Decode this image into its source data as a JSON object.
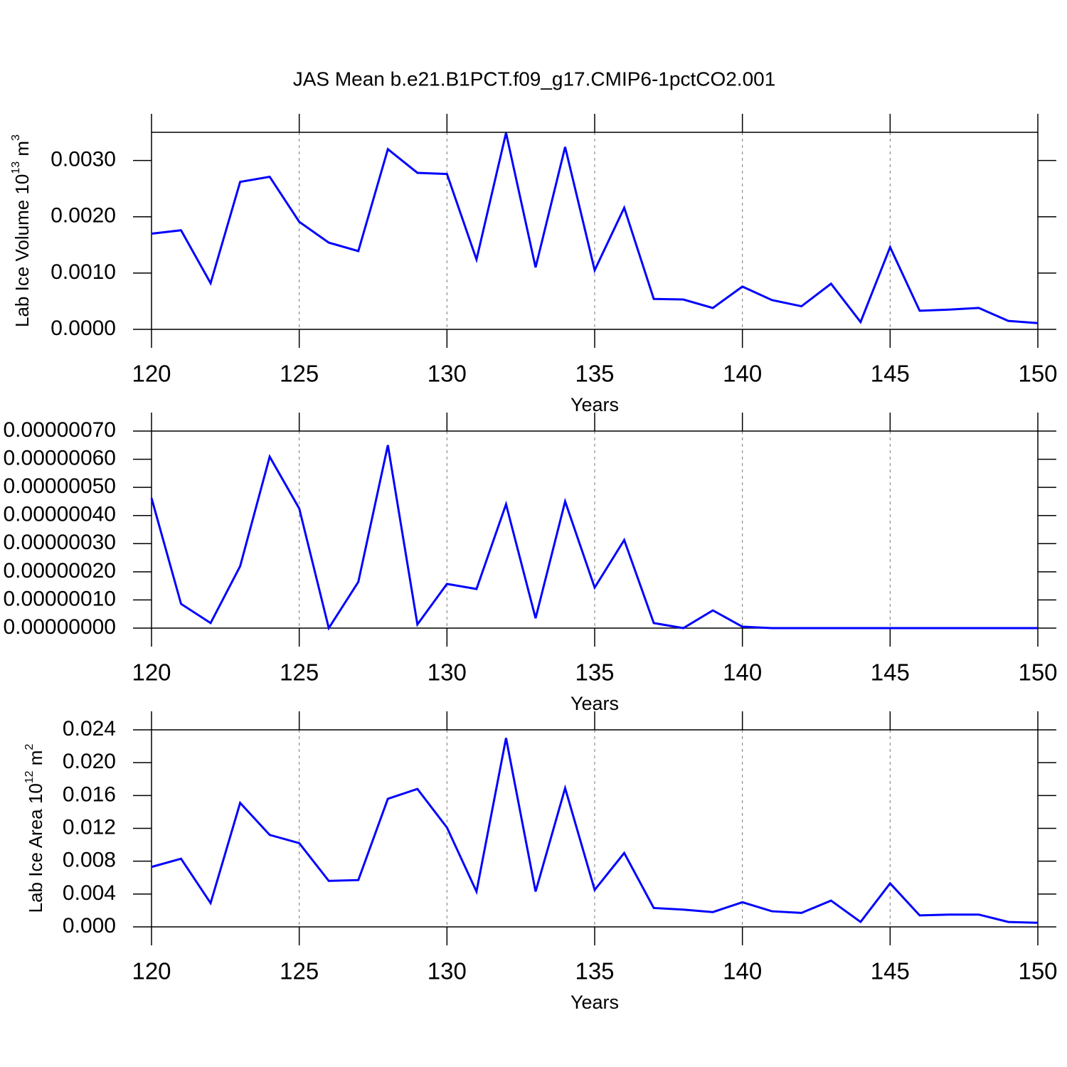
{
  "chart_data": [
    {
      "type": "line",
      "title": "JAS Mean b.e21.B1PCT.f09_g17.CMIP6-1pctCO2.001",
      "xlabel": "Years",
      "ylabel": [
        "Lab Ice Volume 10",
        "13",
        " m",
        "3"
      ],
      "x": [
        120,
        121,
        122,
        123,
        124,
        125,
        126,
        127,
        128,
        129,
        130,
        131,
        132,
        133,
        134,
        135,
        136,
        137,
        138,
        139,
        140,
        141,
        142,
        143,
        144,
        145,
        146,
        147,
        148,
        149,
        150
      ],
      "series": [
        {
          "color": "#0000ff",
          "values": [
            0.0017,
            0.00176,
            0.00082,
            0.00262,
            0.00271,
            0.00191,
            0.00154,
            0.00139,
            0.0032,
            0.00278,
            0.00276,
            0.00124,
            0.00349,
            0.0011,
            0.00324,
            0.00105,
            0.00216,
            0.00054,
            0.00053,
            0.00038,
            0.00076,
            0.00052,
            0.00041,
            0.00081,
            0.00013,
            0.00146,
            0.00033,
            0.00035,
            0.00038,
            0.00015,
            0.00011
          ]
        }
      ],
      "xlim": [
        120,
        150
      ],
      "xticks": [
        120,
        125,
        130,
        135,
        140,
        145,
        150
      ],
      "ylim": [
        0,
        0.0035
      ],
      "yticks": [
        {
          "value": 0,
          "label": "0.0000"
        },
        {
          "value": 0.001,
          "label": "0.0010"
        },
        {
          "value": 0.002,
          "label": "0.0020"
        },
        {
          "value": 0.003,
          "label": "0.0030"
        }
      ],
      "grid": true
    },
    {
      "type": "line",
      "xlabel": "Years",
      "x": [
        120,
        121,
        122,
        123,
        124,
        125,
        126,
        127,
        128,
        129,
        130,
        131,
        132,
        133,
        134,
        135,
        136,
        137,
        138,
        139,
        140,
        141,
        142,
        143,
        144,
        145,
        146,
        147,
        148,
        149,
        150
      ],
      "series": [
        {
          "color": "#0000ff",
          "values": [
            4.62e-07,
            8.6e-08,
            1.8e-08,
            2.2e-07,
            6.09e-07,
            4.25e-07,
            0,
            1.64e-07,
            6.5e-07,
            1.3e-08,
            1.57e-07,
            1.39e-07,
            4.4e-07,
            3.5e-08,
            4.5e-07,
            1.44e-07,
            3.13e-07,
            1.8e-08,
            0,
            6.3e-08,
            5e-09,
            0,
            0,
            0,
            0,
            0,
            0,
            0,
            0,
            0,
            0
          ]
        }
      ],
      "xlim": [
        120,
        150
      ],
      "xticks": [
        120,
        125,
        130,
        135,
        140,
        145,
        150
      ],
      "ylim": [
        0,
        7e-07
      ],
      "yticks": [
        {
          "value": 0,
          "label": "0.00000000"
        },
        {
          "value": 1e-07,
          "label": "0.00000010"
        },
        {
          "value": 2e-07,
          "label": "0.00000020"
        },
        {
          "value": 3e-07,
          "label": "0.00000030"
        },
        {
          "value": 4e-07,
          "label": "0.00000040"
        },
        {
          "value": 5e-07,
          "label": "0.00000050"
        },
        {
          "value": 6e-07,
          "label": "0.00000060"
        },
        {
          "value": 7e-07,
          "label": "0.00000070"
        }
      ],
      "grid": true
    },
    {
      "type": "line",
      "xlabel": "Years",
      "ylabel": [
        "Lab Ice Area 10",
        "12",
        " m",
        "2"
      ],
      "x": [
        120,
        121,
        122,
        123,
        124,
        125,
        126,
        127,
        128,
        129,
        130,
        131,
        132,
        133,
        134,
        135,
        136,
        137,
        138,
        139,
        140,
        141,
        142,
        143,
        144,
        145,
        146,
        147,
        148,
        149,
        150
      ],
      "series": [
        {
          "color": "#0000ff",
          "values": [
            0.0073,
            0.0083,
            0.0029,
            0.0151,
            0.0112,
            0.0102,
            0.0056,
            0.0057,
            0.0156,
            0.0168,
            0.0121,
            0.0043,
            0.023,
            0.0043,
            0.0169,
            0.0045,
            0.009,
            0.0023,
            0.0021,
            0.0018,
            0.003,
            0.0019,
            0.0017,
            0.0032,
            0.0006,
            0.0053,
            0.0014,
            0.0015,
            0.0015,
            0.0006,
            0.0005
          ]
        }
      ],
      "xlim": [
        120,
        150
      ],
      "xticks": [
        120,
        125,
        130,
        135,
        140,
        145,
        150
      ],
      "ylim": [
        0,
        0.024
      ],
      "yticks": [
        {
          "value": 0,
          "label": "0.000"
        },
        {
          "value": 0.004,
          "label": "0.004"
        },
        {
          "value": 0.008,
          "label": "0.008"
        },
        {
          "value": 0.012,
          "label": "0.012"
        },
        {
          "value": 0.016,
          "label": "0.016"
        },
        {
          "value": 0.02,
          "label": "0.020"
        },
        {
          "value": 0.024,
          "label": "0.024"
        }
      ],
      "grid": true
    }
  ]
}
